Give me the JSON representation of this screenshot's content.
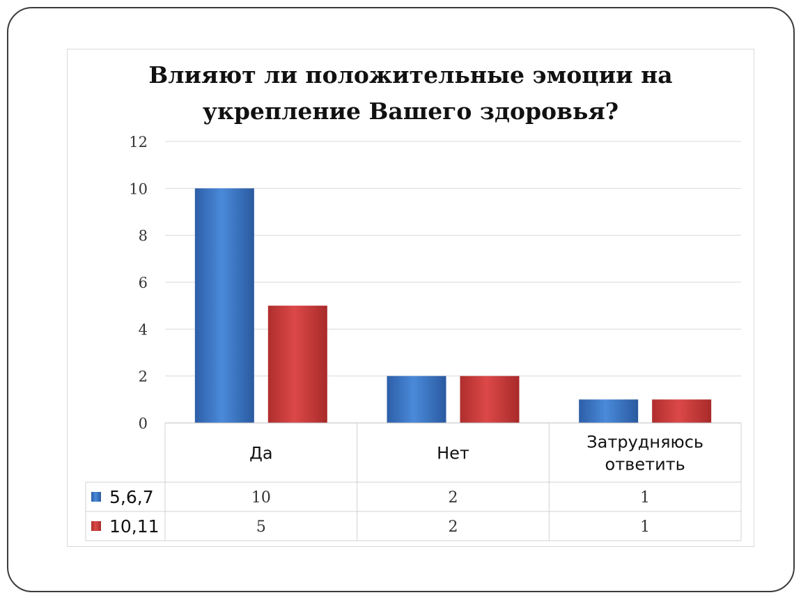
{
  "chart_data": {
    "type": "bar",
    "title": "Влияют ли положительные эмоции на укрепление Вашего здоровья?",
    "title_lines": [
      "Влияют ли положительные эмоции на",
      "укрепление Вашего здоровья?"
    ],
    "categories": [
      "Да",
      "Нет",
      "Затрудняюсь ответить"
    ],
    "category_lines": [
      [
        "Да"
      ],
      [
        "Нет"
      ],
      [
        "Затрудняюсь",
        "ответить"
      ]
    ],
    "series": [
      {
        "name": "5,6,7",
        "values": [
          10,
          2,
          1
        ],
        "color": "#3b72c0"
      },
      {
        "name": "10,11",
        "values": [
          5,
          2,
          1
        ],
        "color": "#c63a3a"
      }
    ],
    "ylim": [
      0,
      12
    ],
    "yticks": [
      "0",
      "2",
      "4",
      "6",
      "8",
      "10",
      "12"
    ],
    "grid": true,
    "legend": "data-table",
    "xlabel": "",
    "ylabel": ""
  }
}
